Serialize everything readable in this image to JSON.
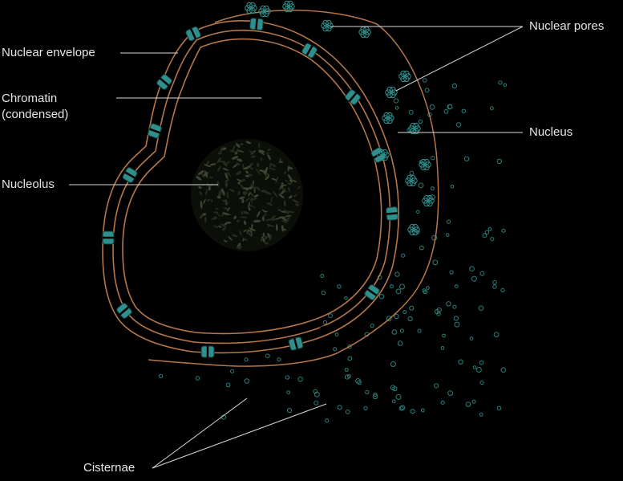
{
  "labels": {
    "nuclear_envelope": "Nuclear envelope",
    "chromatin": "Chromatin",
    "chromatin_sub": "(condensed)",
    "nucleolus": "Nucleolus",
    "nuclear_pores": "Nuclear pores",
    "nucleus": "Nucleus",
    "cisternae": "Cisternae"
  },
  "colors": {
    "background": "#000000",
    "envelope": "#b5764a",
    "pore": "#2f8f8c",
    "vesicle": "#2a7f7a",
    "nucleolus": "#3d4530",
    "leader_line": "#d8d8d8",
    "label_text": "#e6e6e6"
  }
}
